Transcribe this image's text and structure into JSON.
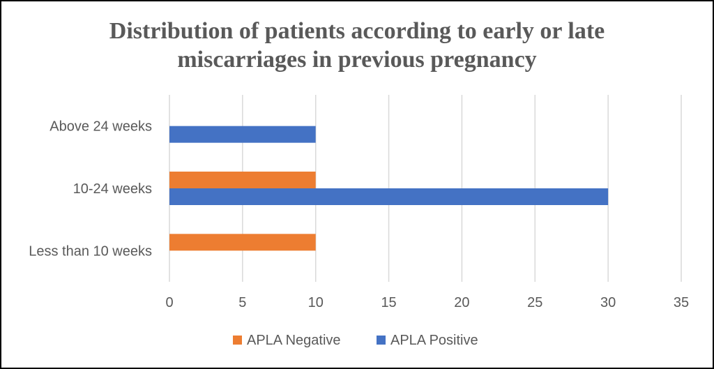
{
  "chart_data": {
    "type": "bar",
    "orientation": "horizontal",
    "title": "Distribution of patients according to early or late miscarriages in previous pregnancy",
    "title_lines": [
      "Distribution of patients according to early or late",
      "miscarriages in previous pregnancy"
    ],
    "categories": [
      "Above 24 weeks",
      "10-24 weeks",
      "Less than 10 weeks"
    ],
    "series": [
      {
        "name": "APLA Negative",
        "color": "#ED7D31",
        "values": [
          0,
          10,
          10
        ]
      },
      {
        "name": "APLA Positive",
        "color": "#4472C4",
        "values": [
          10,
          30,
          0
        ]
      }
    ],
    "xlim": [
      0,
      35
    ],
    "xticks": [
      "0",
      "5",
      "10",
      "15",
      "20",
      "25",
      "30",
      "35"
    ],
    "grid": true,
    "legend_position": "bottom"
  }
}
